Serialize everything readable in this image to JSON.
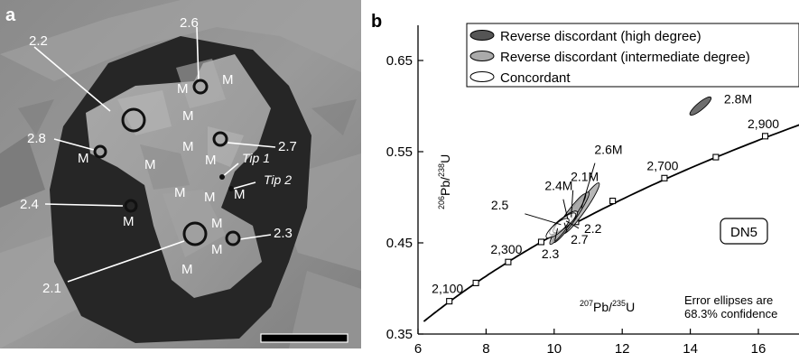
{
  "panel_a": {
    "label": "a",
    "spots": [
      {
        "id": "2.1"
      },
      {
        "id": "2.2"
      },
      {
        "id": "2.3"
      },
      {
        "id": "2.4"
      },
      {
        "id": "2.6"
      },
      {
        "id": "2.7"
      },
      {
        "id": "2.8"
      }
    ],
    "metamict_label": "M",
    "tips": [
      "Tip 1",
      "Tip 2"
    ]
  },
  "chart_data": {
    "type": "scatter",
    "panel_label": "b",
    "xlabel": "207Pb/235U",
    "ylabel": "206Pb/238U",
    "xlim": [
      6,
      17.5
    ],
    "ylim": [
      0.35,
      0.7
    ],
    "x_ticks": [
      6,
      8,
      10,
      12,
      14,
      16
    ],
    "x_tick_labels": [
      "6",
      "8",
      "10",
      "12",
      "14",
      "16"
    ],
    "y_ticks": [
      0.35,
      0.45,
      0.55,
      0.65
    ],
    "y_tick_labels": [
      "0.35",
      "0.45",
      "0.55",
      "0.65"
    ],
    "legend": {
      "placement": "top-right",
      "entries": [
        {
          "label": "Reverse discordant (high degree)",
          "fill": "#555555"
        },
        {
          "label": "Reverse discordant (intermediate degree)",
          "fill": "#aaaaaa"
        },
        {
          "label": "Concordant",
          "fill": "#ffffff"
        }
      ]
    },
    "concordia_ages": [
      {
        "age": 2100,
        "label": "2,100",
        "x": 6.92,
        "y": 0.386
      },
      {
        "age": 2200,
        "label": "",
        "x": 7.7,
        "y": 0.406
      },
      {
        "age": 2300,
        "label": "2,300",
        "x": 8.65,
        "y": 0.429
      },
      {
        "age": 2400,
        "label": "",
        "x": 9.62,
        "y": 0.451
      },
      {
        "age": 2500,
        "label": "",
        "x": 10.64,
        "y": 0.473
      },
      {
        "age": 2600,
        "label": "",
        "x": 11.72,
        "y": 0.496
      },
      {
        "age": 2700,
        "label": "2,700",
        "x": 13.24,
        "y": 0.521
      },
      {
        "age": 2800,
        "label": "",
        "x": 14.75,
        "y": 0.544
      },
      {
        "age": 2900,
        "label": "2,900",
        "x": 16.2,
        "y": 0.567
      }
    ],
    "series": [
      {
        "label": "2.8M",
        "type": "reverse-discordant-high",
        "x": 14.3,
        "y": 0.6
      },
      {
        "label": "2.6M",
        "type": "reverse-discordant-intermediate",
        "x": 10.8,
        "y": 0.488
      },
      {
        "label": "2.1M",
        "type": "reverse-discordant-intermediate",
        "x": 10.5,
        "y": 0.478
      },
      {
        "label": "2.4M",
        "type": "reverse-discordant-intermediate",
        "x": 10.4,
        "y": 0.476
      },
      {
        "label": "2.5",
        "type": "concordant",
        "x": 10.2,
        "y": 0.47
      },
      {
        "label": "2.2",
        "type": "concordant",
        "x": 10.35,
        "y": 0.474
      },
      {
        "label": "2.7",
        "type": "concordant",
        "x": 10.3,
        "y": 0.472
      },
      {
        "label": "2.3",
        "type": "concordant",
        "x": 10.1,
        "y": 0.466
      }
    ],
    "sample_label": "DN5",
    "annotation": "Error ellipses are 68.3% confidence"
  }
}
